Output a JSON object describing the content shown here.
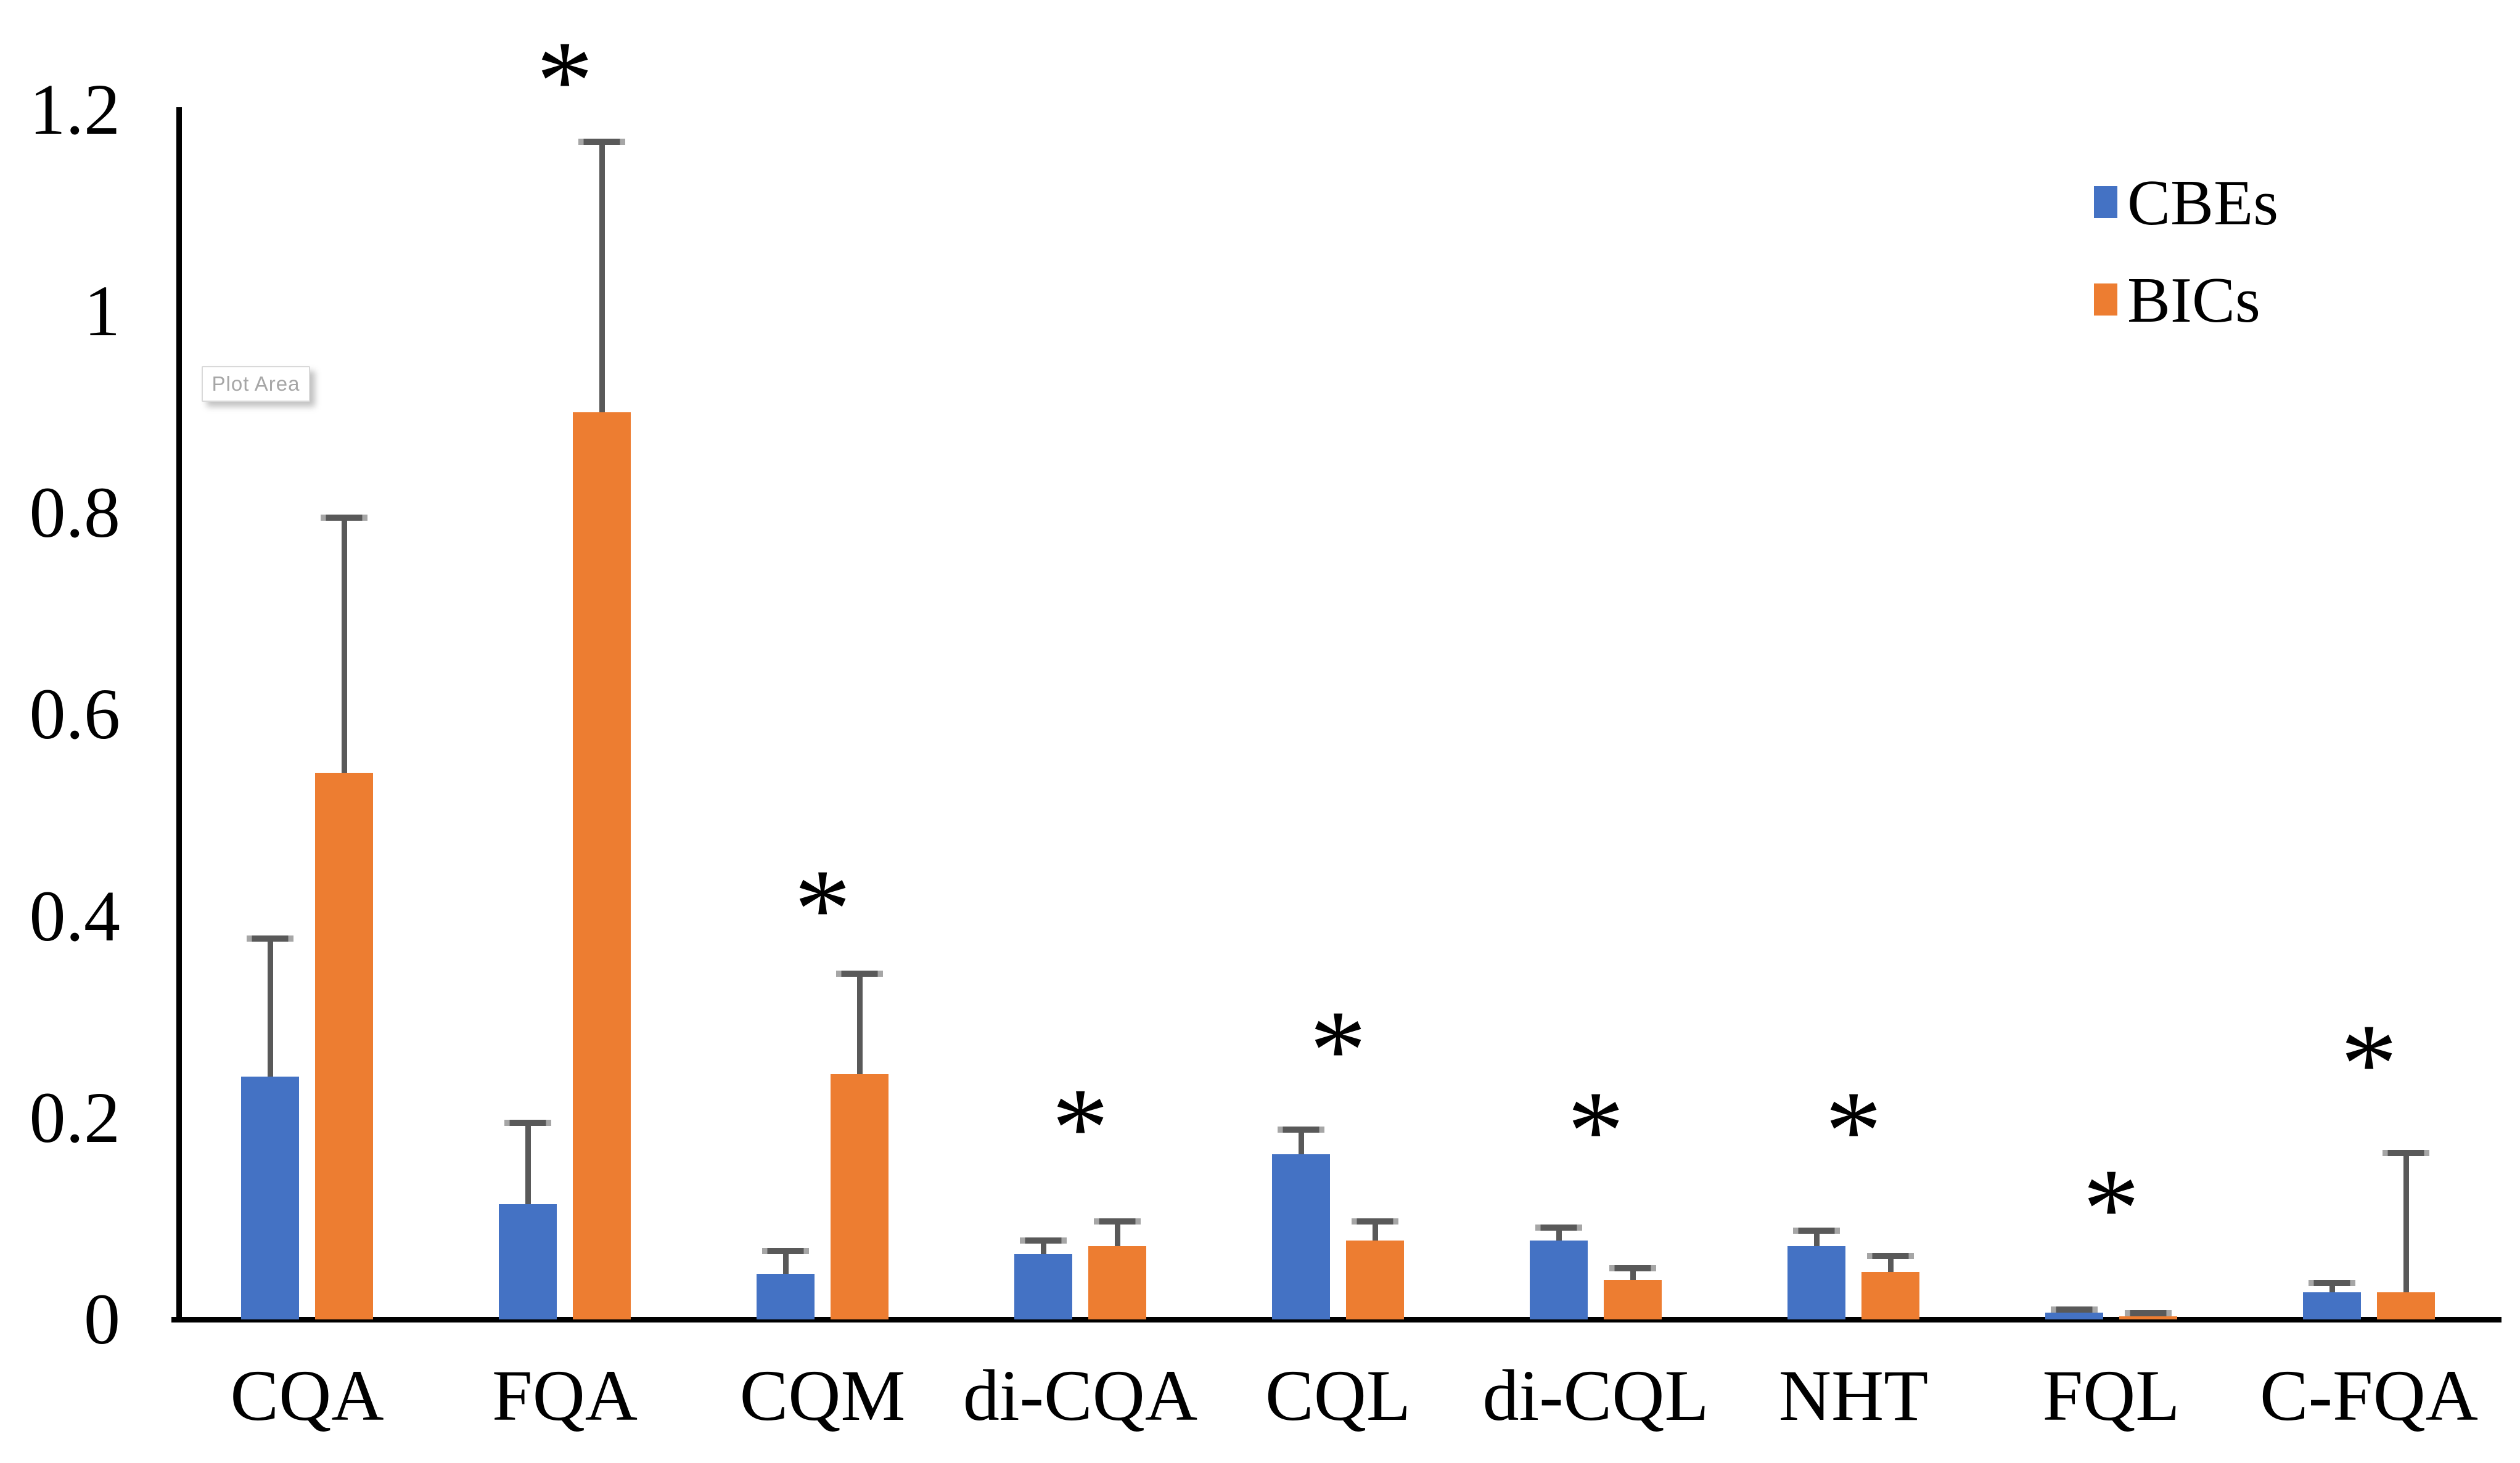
{
  "chart_data": {
    "type": "bar",
    "title": "",
    "categories": [
      "CQA",
      "FQA",
      "CQM",
      "di-CQA",
      "CQL",
      "di-CQL",
      "NHT",
      "FQL",
      "C-FQA"
    ],
    "series": [
      {
        "name": "CBEs",
        "color": "#4472C4",
        "values": [
          0.241,
          0.114,
          0.045,
          0.065,
          0.164,
          0.078,
          0.073,
          0.007,
          0.027
        ],
        "error_up": [
          0.137,
          0.081,
          0.023,
          0.013,
          0.024,
          0.013,
          0.015,
          0.003,
          0.009
        ]
      },
      {
        "name": "BICs",
        "color": "#ED7D31",
        "values": [
          0.542,
          0.9,
          0.243,
          0.073,
          0.078,
          0.039,
          0.047,
          0.003,
          0.027
        ],
        "error_up": [
          0.253,
          0.268,
          0.1,
          0.024,
          0.019,
          0.012,
          0.016,
          0.003,
          0.138
        ]
      }
    ],
    "ylabel": "",
    "xlabel": "",
    "ylim": [
      0,
      1.2
    ],
    "yticks": {
      "values": [
        0,
        0.2,
        0.4,
        0.6,
        0.8,
        1,
        1.2
      ],
      "labels": [
        "0",
        "0.2",
        "0.4",
        "0.6",
        "0.8",
        "1",
        "1.2"
      ]
    },
    "grid": false,
    "legend_position": "upper-right",
    "error_bar_color": "#595959",
    "axis_color": "#000000",
    "significance": {
      "marker": "*",
      "flags": [
        false,
        true,
        true,
        true,
        true,
        true,
        true,
        true,
        true
      ],
      "marker_y": [
        null,
        1.257,
        0.435,
        0.218,
        0.295,
        0.215,
        0.215,
        0.138,
        0.282
      ]
    }
  },
  "legend": {
    "items": [
      {
        "label": "CBEs"
      },
      {
        "label": "BICs"
      }
    ]
  },
  "overlay": {
    "plot_area_label": "Plot Area"
  }
}
